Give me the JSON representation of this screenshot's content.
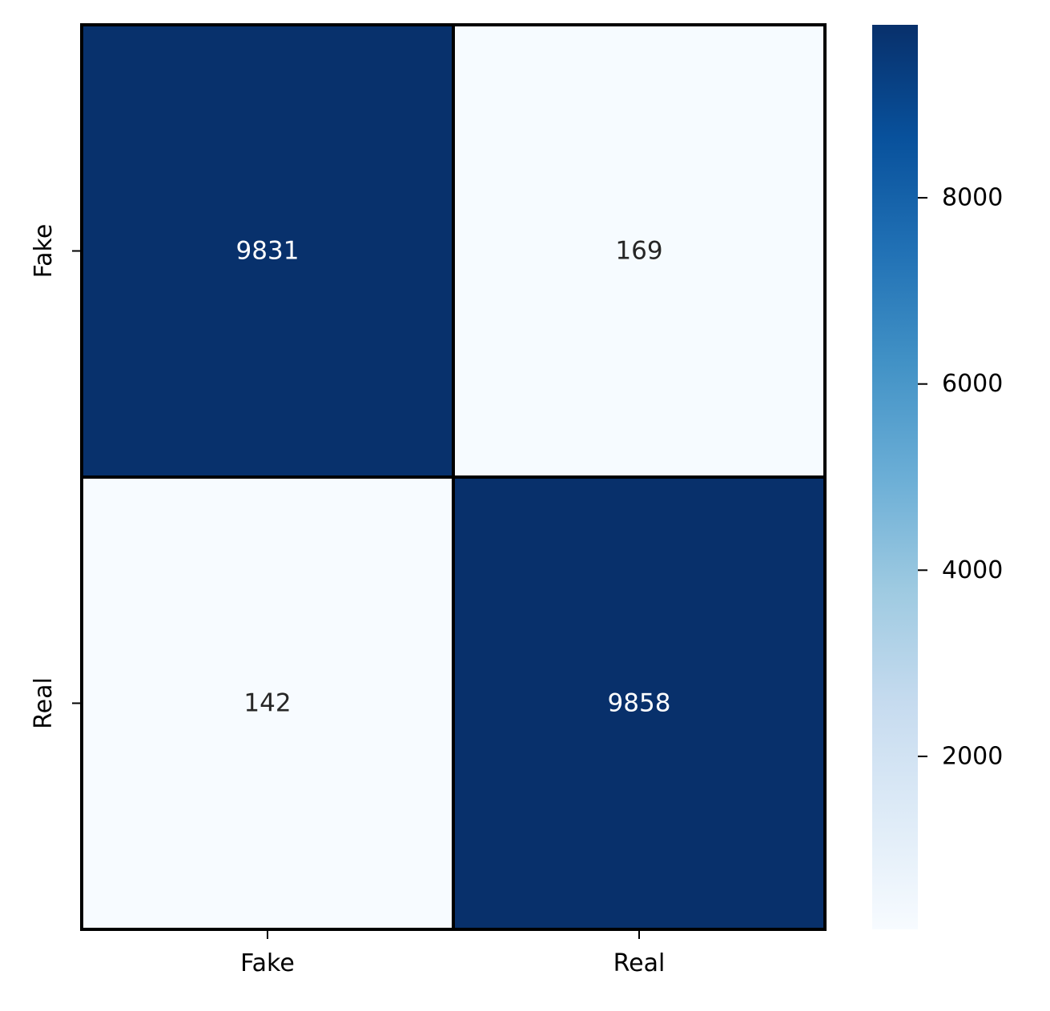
{
  "chart_data": {
    "type": "heatmap",
    "title": "",
    "xlabel": "",
    "ylabel": "",
    "x_categories": [
      "Fake",
      "Real"
    ],
    "y_categories": [
      "Fake",
      "Real"
    ],
    "values": [
      [
        9831,
        169
      ],
      [
        142,
        9858
      ]
    ],
    "colormap": "Blues",
    "colorbar": {
      "min": 142,
      "max": 9858,
      "ticks": [
        2000,
        4000,
        6000,
        8000
      ],
      "tick_labels": [
        "2000",
        "4000",
        "6000",
        "8000"
      ]
    },
    "colors": {
      "dark_cell": "#08306b",
      "light_cell": "#f7fbff",
      "cell_border": "#000000",
      "text_on_dark": "#ffffff",
      "text_on_light": "#262626"
    }
  }
}
